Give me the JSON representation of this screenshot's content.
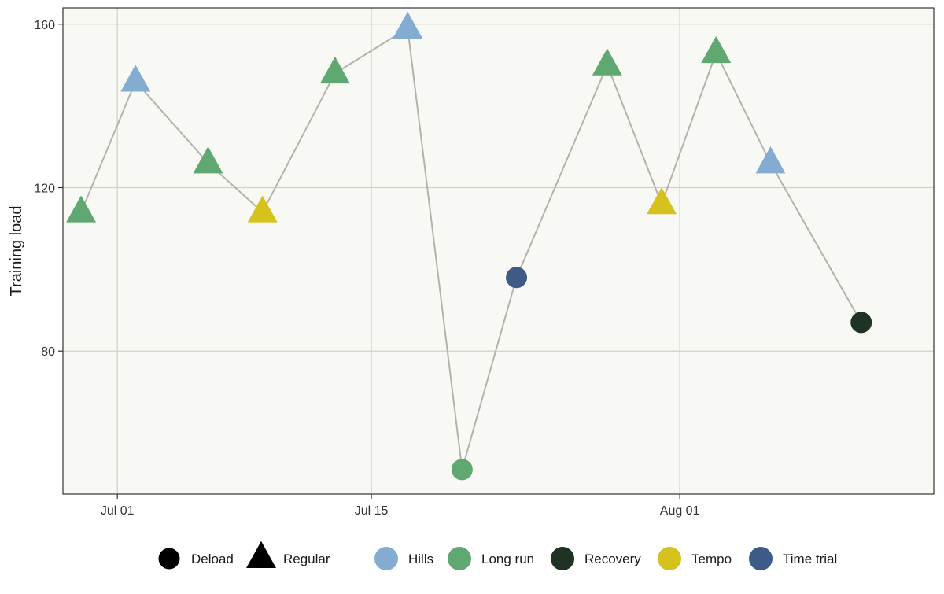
{
  "chart_data": {
    "type": "line",
    "xlabel": "",
    "ylabel": "Training load",
    "x_range": [
      "2025-06-28",
      "2025-08-15"
    ],
    "ylim": [
      45,
      164
    ],
    "x_ticks": [
      {
        "date": "2025-07-01",
        "label": "Jul 01"
      },
      {
        "date": "2025-07-15",
        "label": "Jul 15"
      },
      {
        "date": "2025-08-01",
        "label": "Aug 01"
      }
    ],
    "y_ticks": [
      80,
      120,
      160
    ],
    "grid": true,
    "colors": {
      "Hills": "#84acd0",
      "Long run": "#5fa872",
      "Recovery": "#1e3323",
      "Tempo": "#d6c21c",
      "Time trial": "#3e5a86",
      "line": "#b3b3ae",
      "panel": "#f8f8f4",
      "grid": "#d4d2c6"
    },
    "points": [
      {
        "date": "2025-06-29",
        "y": 114,
        "session": "Long run",
        "kind": "Regular"
      },
      {
        "date": "2025-07-02",
        "y": 146,
        "session": "Hills",
        "kind": "Regular"
      },
      {
        "date": "2025-07-06",
        "y": 126,
        "session": "Long run",
        "kind": "Regular"
      },
      {
        "date": "2025-07-09",
        "y": 114,
        "session": "Tempo",
        "kind": "Regular"
      },
      {
        "date": "2025-07-13",
        "y": 148,
        "session": "Long run",
        "kind": "Regular"
      },
      {
        "date": "2025-07-17",
        "y": 159,
        "session": "Hills",
        "kind": "Regular"
      },
      {
        "date": "2025-07-20",
        "y": 51,
        "session": "Long run",
        "kind": "Deload"
      },
      {
        "date": "2025-07-23",
        "y": 98,
        "session": "Time trial",
        "kind": "Deload"
      },
      {
        "date": "2025-07-28",
        "y": 150,
        "session": "Long run",
        "kind": "Regular"
      },
      {
        "date": "2025-07-31",
        "y": 116,
        "session": "Tempo",
        "kind": "Regular"
      },
      {
        "date": "2025-08-03",
        "y": 153,
        "session": "Long run",
        "kind": "Regular"
      },
      {
        "date": "2025-08-06",
        "y": 126,
        "session": "Hills",
        "kind": "Regular"
      },
      {
        "date": "2025-08-11",
        "y": 87,
        "session": "Recovery",
        "kind": "Deload"
      }
    ],
    "legend": {
      "placement": "bottom",
      "shape_entries": [
        "Deload",
        "Regular"
      ],
      "color_entries": [
        "Hills",
        "Long run",
        "Recovery",
        "Tempo",
        "Time trial"
      ]
    }
  }
}
